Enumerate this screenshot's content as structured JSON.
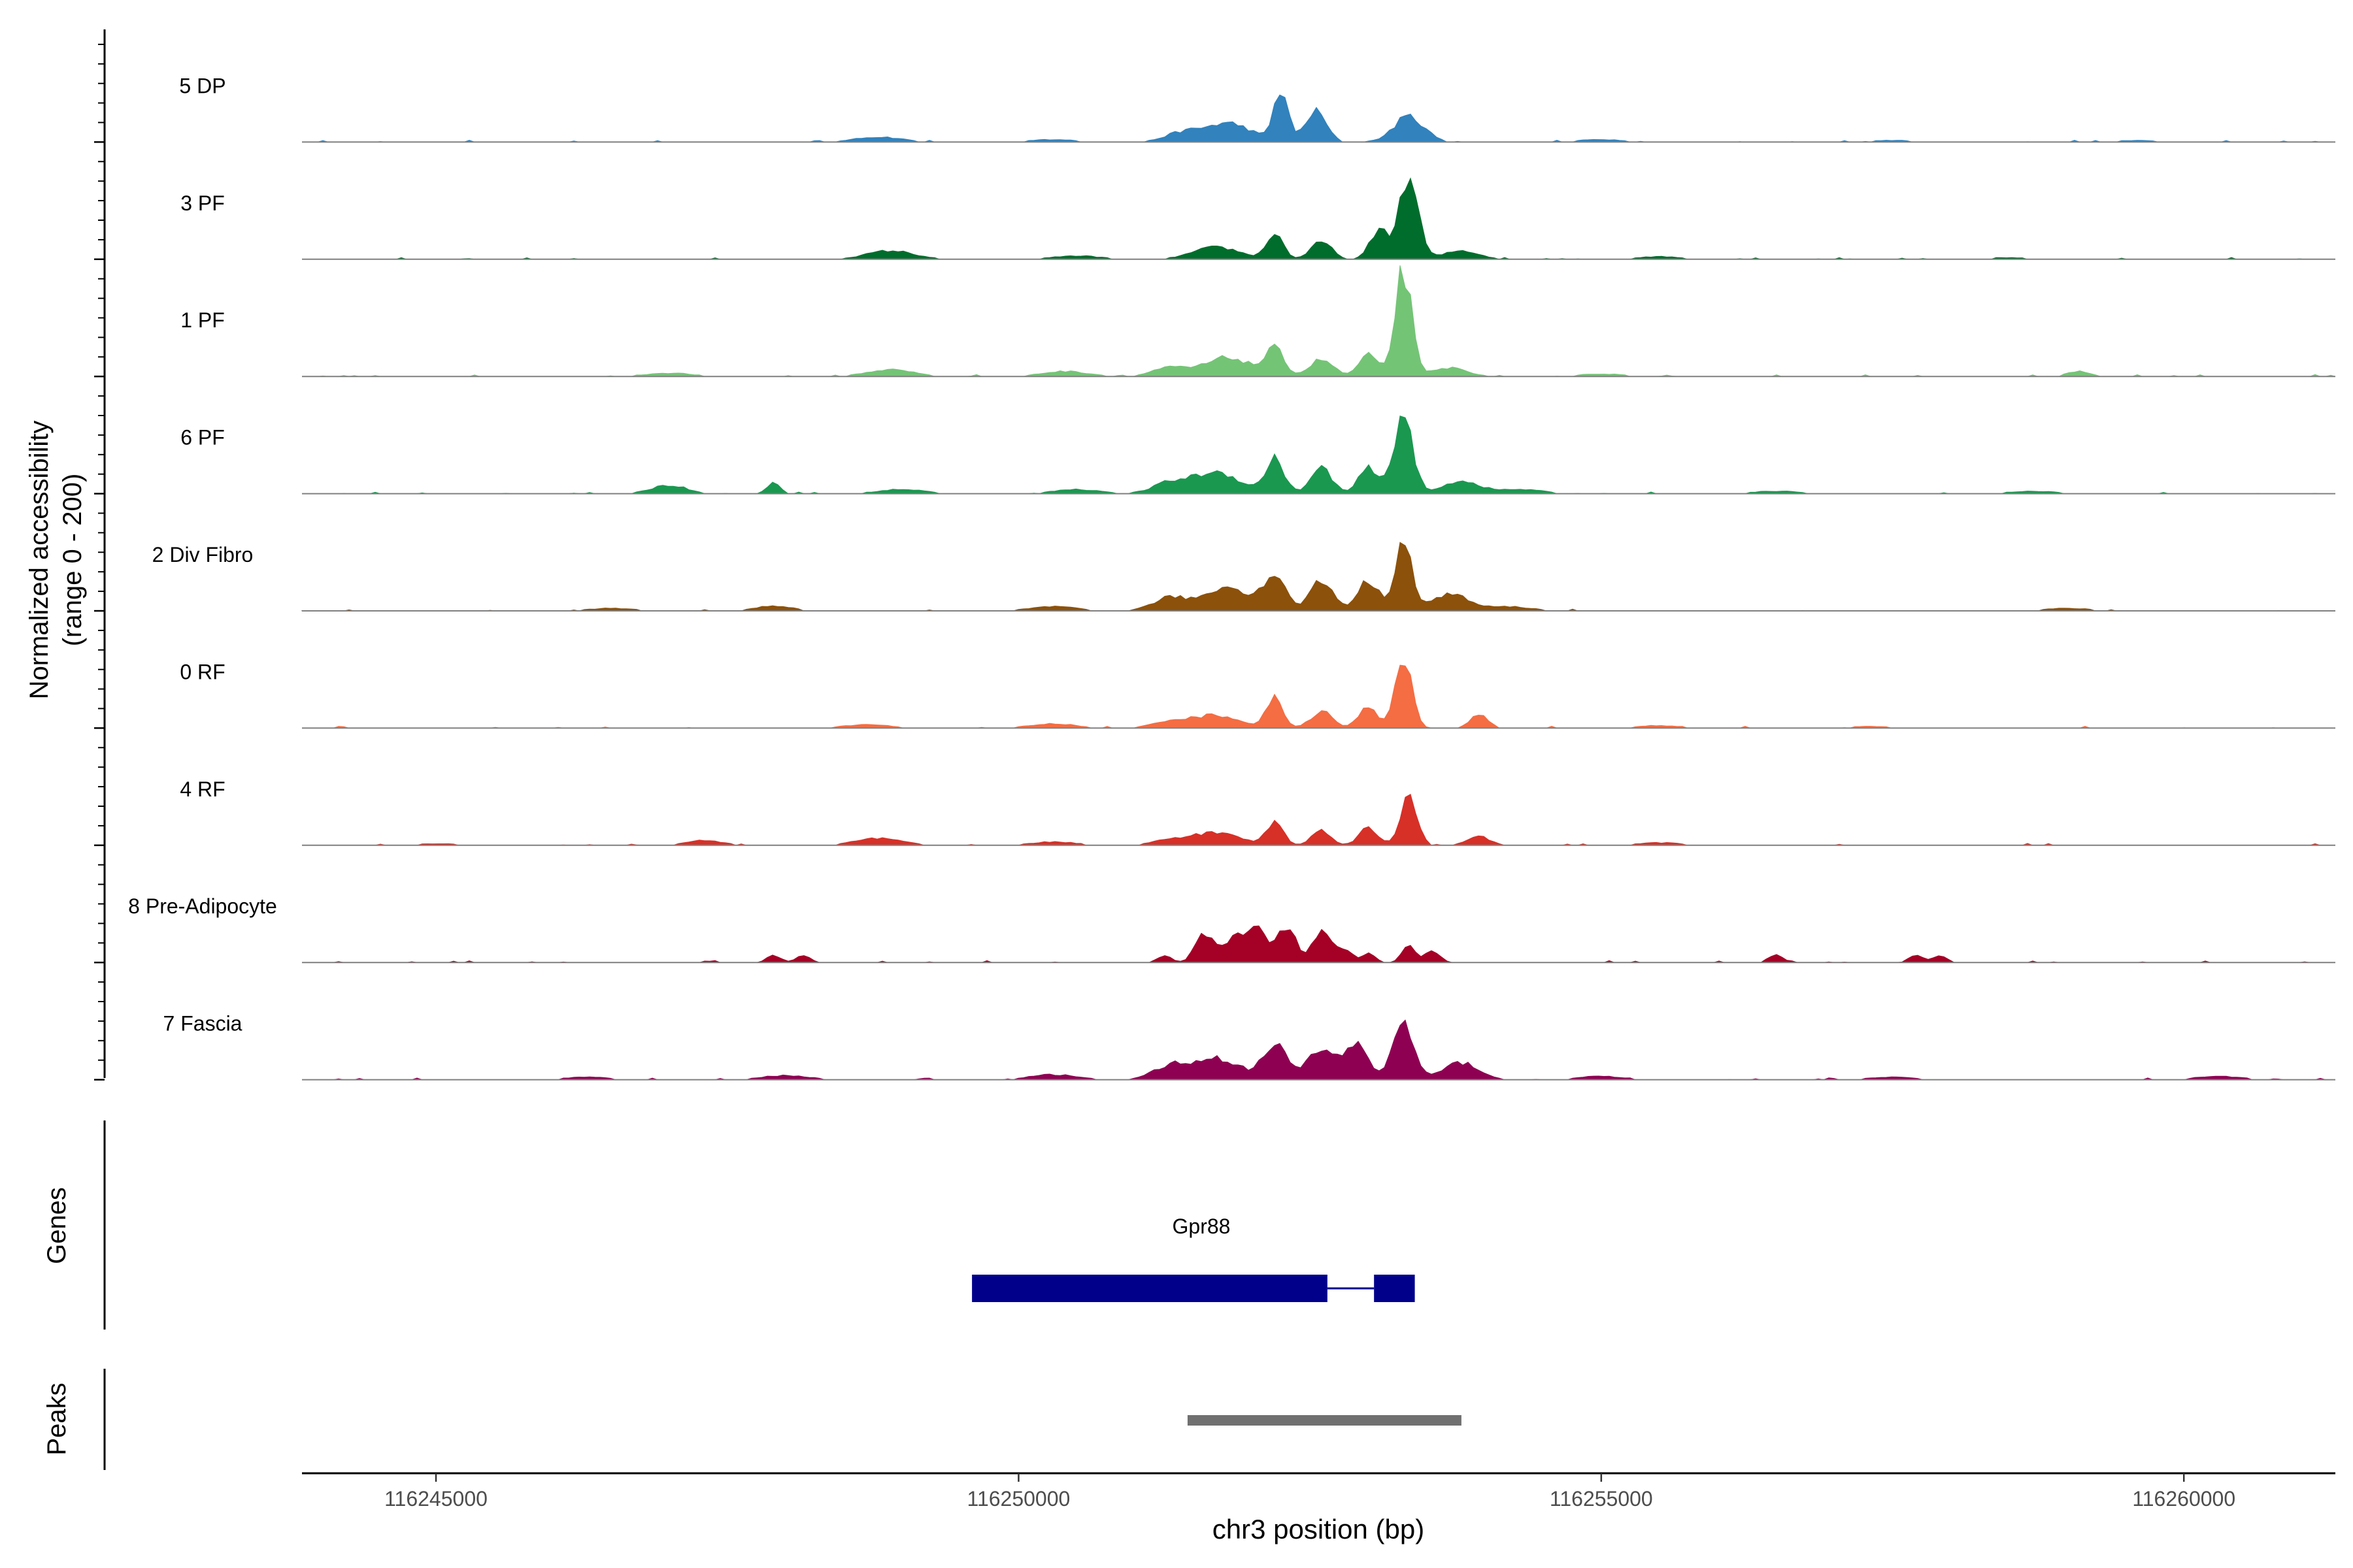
{
  "chart_data": {
    "type": "area",
    "title": "",
    "ylabel_line1": "Normalized accessibility",
    "ylabel_line2": "(range 0 - 200)",
    "y_range": [
      0,
      200
    ],
    "xlabel": "chr3 position (bp)",
    "xlim": [
      116243850,
      116261300
    ],
    "xticks": [
      116245000,
      116250000,
      116255000,
      116260000
    ],
    "xtick_labels": [
      "116245000",
      "116250000",
      "116255000",
      "116260000"
    ],
    "tracks": [
      {
        "name": "5 DP",
        "color": "#3182bd",
        "peaks": [
          [
            116252250,
            60,
            60
          ],
          [
            116252550,
            36,
            90
          ],
          [
            116253350,
            30,
            130
          ],
          [
            116251800,
            22,
            200
          ],
          [
            116251400,
            10,
            150
          ],
          [
            116248800,
            6,
            200
          ],
          [
            116250300,
            3,
            200
          ],
          [
            116255000,
            3,
            200
          ],
          [
            116257500,
            2,
            200
          ],
          [
            116259600,
            2,
            200
          ]
        ]
      },
      {
        "name": "3 PF",
        "color": "#006d2c",
        "peaks": [
          [
            116253350,
            95,
            80
          ],
          [
            116253100,
            35,
            80
          ],
          [
            116252200,
            30,
            70
          ],
          [
            116252600,
            20,
            90
          ],
          [
            116251700,
            14,
            200
          ],
          [
            116253800,
            10,
            150
          ],
          [
            116248900,
            10,
            200
          ],
          [
            116250500,
            4,
            200
          ],
          [
            116255500,
            3,
            200
          ],
          [
            116258500,
            2,
            200
          ]
        ]
      },
      {
        "name": "1 PF",
        "color": "#74c476",
        "peaks": [
          [
            116253300,
            125,
            70
          ],
          [
            116253000,
            25,
            80
          ],
          [
            116252200,
            30,
            80
          ],
          [
            116252600,
            20,
            100
          ],
          [
            116251800,
            22,
            200
          ],
          [
            116251300,
            10,
            150
          ],
          [
            116248900,
            8,
            200
          ],
          [
            116250400,
            6,
            200
          ],
          [
            116253700,
            10,
            150
          ],
          [
            116259100,
            6,
            100
          ],
          [
            116247000,
            4,
            200
          ],
          [
            116255000,
            3,
            200
          ]
        ]
      },
      {
        "name": "6 PF",
        "color": "#1a9850",
        "peaks": [
          [
            116253300,
            95,
            80
          ],
          [
            116253000,
            30,
            80
          ],
          [
            116252200,
            40,
            80
          ],
          [
            116252600,
            30,
            90
          ],
          [
            116251700,
            25,
            200
          ],
          [
            116251300,
            12,
            150
          ],
          [
            116253800,
            15,
            150
          ],
          [
            116247000,
            10,
            150
          ],
          [
            116247900,
            12,
            60
          ],
          [
            116249000,
            5,
            200
          ],
          [
            116250500,
            5,
            200
          ],
          [
            116254300,
            5,
            200
          ],
          [
            116256500,
            3,
            200
          ],
          [
            116258700,
            3,
            200
          ]
        ]
      },
      {
        "name": "2 Div Fibro",
        "color": "#8c510a",
        "peaks": [
          [
            116253300,
            85,
            70
          ],
          [
            116253000,
            35,
            90
          ],
          [
            116252200,
            40,
            90
          ],
          [
            116252600,
            35,
            100
          ],
          [
            116251800,
            28,
            200
          ],
          [
            116251300,
            15,
            150
          ],
          [
            116253700,
            20,
            150
          ],
          [
            116247900,
            6,
            150
          ],
          [
            116250300,
            5,
            200
          ],
          [
            116254200,
            5,
            200
          ],
          [
            116246500,
            3,
            200
          ],
          [
            116259000,
            3,
            200
          ]
        ]
      },
      {
        "name": "0 RF",
        "color": "#f46d43",
        "peaks": [
          [
            116253300,
            85,
            70
          ],
          [
            116253000,
            25,
            80
          ],
          [
            116252200,
            35,
            70
          ],
          [
            116252600,
            20,
            90
          ],
          [
            116251700,
            15,
            200
          ],
          [
            116253950,
            15,
            80
          ],
          [
            116251300,
            8,
            150
          ],
          [
            116250300,
            5,
            200
          ],
          [
            116248700,
            4,
            200
          ],
          [
            116255500,
            3,
            200
          ],
          [
            116257300,
            2,
            200
          ]
        ]
      },
      {
        "name": "4 RF",
        "color": "#d73027",
        "peaks": [
          [
            116253350,
            60,
            70
          ],
          [
            116253000,
            20,
            80
          ],
          [
            116252200,
            28,
            70
          ],
          [
            116252600,
            18,
            80
          ],
          [
            116251700,
            15,
            200
          ],
          [
            116253950,
            10,
            100
          ],
          [
            116251300,
            6,
            150
          ],
          [
            116247300,
            6,
            150
          ],
          [
            116248800,
            8,
            200
          ],
          [
            116250300,
            4,
            200
          ],
          [
            116255500,
            3,
            200
          ],
          [
            116245000,
            2,
            200
          ]
        ]
      },
      {
        "name": "8 Pre-Adipocyte",
        "color": "#a50026",
        "peaks": [
          [
            116251600,
            35,
            80
          ],
          [
            116251850,
            30,
            80
          ],
          [
            116252050,
            40,
            80
          ],
          [
            116252300,
            40,
            80
          ],
          [
            116252600,
            35,
            80
          ],
          [
            116252800,
            15,
            60
          ],
          [
            116253000,
            10,
            60
          ],
          [
            116253350,
            18,
            60
          ],
          [
            116253550,
            15,
            60
          ],
          [
            116247900,
            8,
            60
          ],
          [
            116248150,
            8,
            60
          ],
          [
            116251250,
            8,
            60
          ],
          [
            116256500,
            10,
            60
          ],
          [
            116257700,
            8,
            60
          ],
          [
            116257900,
            8,
            60
          ]
        ]
      },
      {
        "name": "7 Fascia",
        "color": "#8e0152",
        "peaks": [
          [
            116253300,
            65,
            90
          ],
          [
            116252900,
            40,
            100
          ],
          [
            116252200,
            40,
            100
          ],
          [
            116252600,
            35,
            120
          ],
          [
            116251700,
            25,
            200
          ],
          [
            116251300,
            15,
            150
          ],
          [
            116253800,
            20,
            150
          ],
          [
            116250300,
            6,
            200
          ],
          [
            116248000,
            5,
            200
          ],
          [
            116255000,
            4,
            200
          ],
          [
            116246300,
            3,
            200
          ],
          [
            116257500,
            3,
            200
          ],
          [
            116260300,
            4,
            200
          ]
        ]
      }
    ],
    "genes_label": "Genes",
    "gene": {
      "name": "Gpr88",
      "color": "#00008b",
      "exons": [
        [
          116249600,
          116252650
        ],
        [
          116253050,
          116253400
        ]
      ],
      "intron": [
        116252650,
        116253050
      ]
    },
    "peaks_label": "Peaks",
    "peak_regions": [
      [
        116251450,
        116253800
      ]
    ],
    "peak_color": "#707070"
  }
}
